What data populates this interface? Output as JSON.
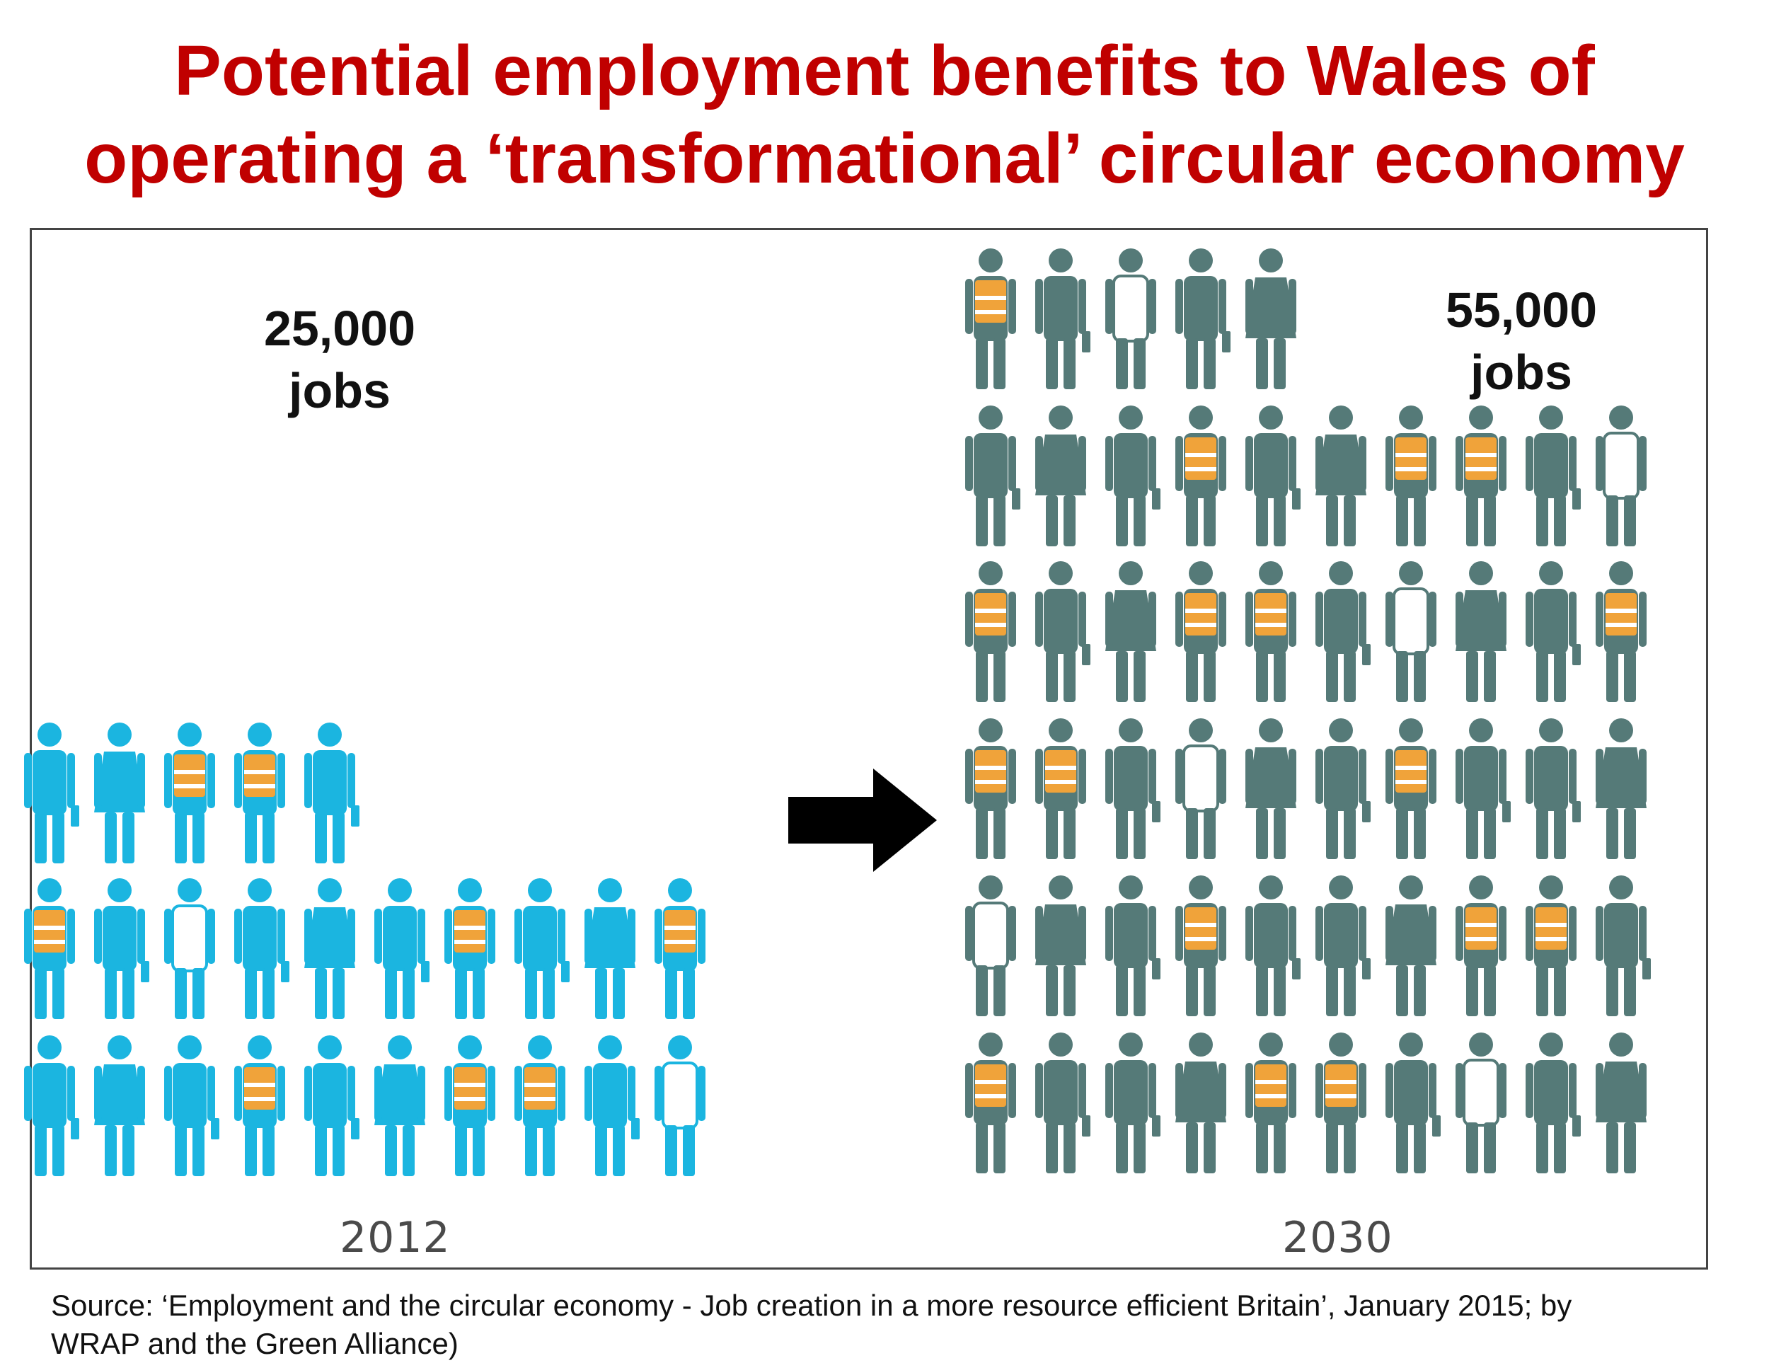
{
  "title": {
    "line1": "Potential employment benefits to Wales of",
    "line2": "operating a ‘transformational’ circular economy"
  },
  "colors": {
    "title": "#c00000",
    "person_2012": "#1bb5e0",
    "person_2030": "#557a78",
    "vest": "#f0a33a"
  },
  "chart_data": {
    "type": "pictogram",
    "categories": [
      "2012",
      "2030"
    ],
    "values": [
      25000,
      55000
    ],
    "value_labels": [
      {
        "number": "25,000",
        "unit": "jobs"
      },
      {
        "number": "55,000",
        "unit": "jobs"
      }
    ],
    "rows": [
      [
        5,
        10,
        10
      ],
      [
        5,
        10,
        10,
        10,
        10,
        10
      ]
    ]
  },
  "source": {
    "line1": "Source: ‘Employment and the circular economy - Job creation in a more resource efficient Britain’, January 2015; by",
    "line2": "WRAP  and the Green Alliance)"
  }
}
